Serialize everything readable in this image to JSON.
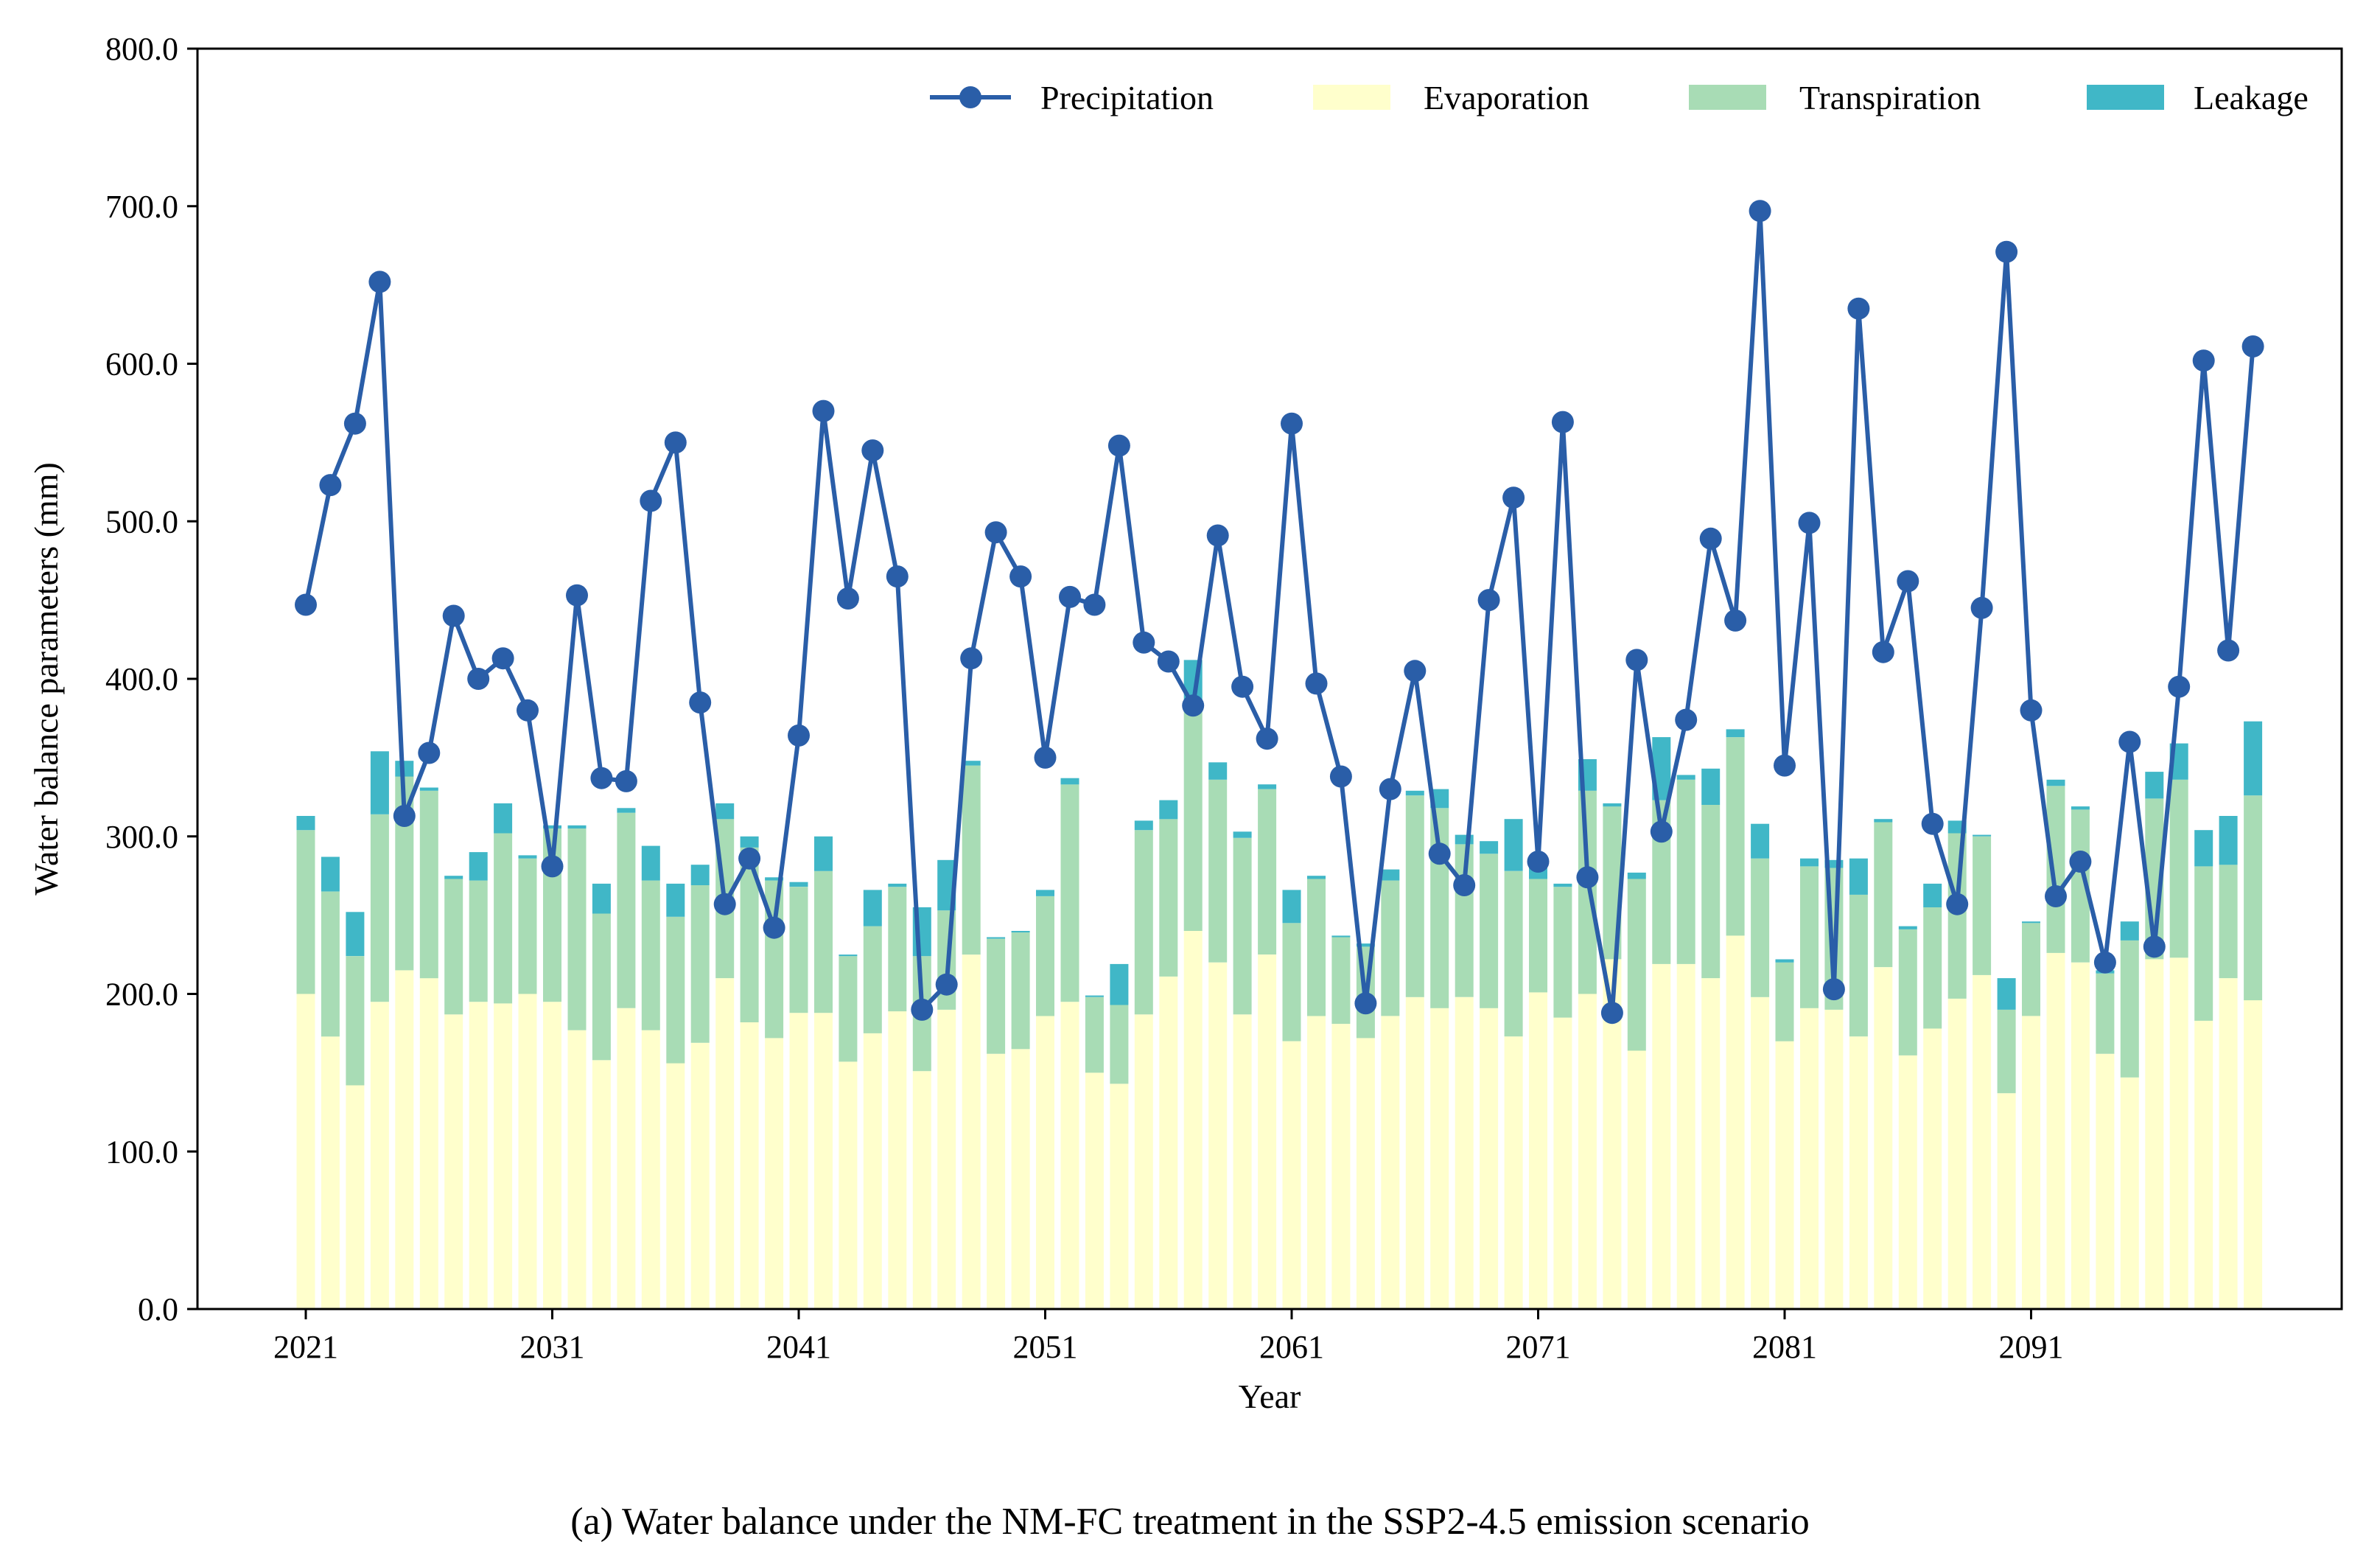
{
  "chart_data": {
    "type": "bar",
    "stacked": true,
    "title": "",
    "caption": "(a) Water balance under the NM-FC treatment in the SSP2-4.5 emission scenario",
    "xlabel": "Year",
    "ylabel": "Water balance parameters (mm)",
    "ylim": [
      0,
      800
    ],
    "yticks": [
      "0.0",
      "100.0",
      "200.0",
      "300.0",
      "400.0",
      "500.0",
      "600.0",
      "700.0",
      "800.0"
    ],
    "xticks": [
      "2021",
      "2031",
      "2041",
      "2051",
      "2061",
      "2071",
      "2081",
      "2091"
    ],
    "legend_position": "top-right",
    "years": [
      2021,
      2022,
      2023,
      2024,
      2025,
      2026,
      2027,
      2028,
      2029,
      2030,
      2031,
      2032,
      2033,
      2034,
      2035,
      2036,
      2037,
      2038,
      2039,
      2040,
      2041,
      2042,
      2043,
      2044,
      2045,
      2046,
      2047,
      2048,
      2049,
      2050,
      2051,
      2052,
      2053,
      2054,
      2055,
      2056,
      2057,
      2058,
      2059,
      2060,
      2061,
      2062,
      2063,
      2064,
      2065,
      2066,
      2067,
      2068,
      2069,
      2070,
      2071,
      2072,
      2073,
      2074,
      2075,
      2076,
      2077,
      2078,
      2079,
      2080,
      2081,
      2082,
      2083,
      2084,
      2085,
      2086,
      2087,
      2088,
      2089,
      2090,
      2091,
      2092,
      2093,
      2094,
      2095,
      2096,
      2097,
      2098,
      2099,
      2100
    ],
    "series": [
      {
        "name": "Precipitation",
        "kind": "line",
        "color": "#2a5ea8",
        "values": [
          447,
          523,
          562,
          652,
          313,
          353,
          440,
          400,
          413,
          380,
          281,
          453,
          337,
          335,
          513,
          550,
          385,
          257,
          286,
          242,
          364,
          570,
          451,
          545,
          465,
          190,
          206,
          413,
          493,
          465,
          350,
          452,
          447,
          548,
          423,
          411,
          383,
          491,
          395,
          362,
          562,
          397,
          338,
          194,
          330,
          405,
          289,
          269,
          450,
          515,
          284,
          563,
          274,
          188,
          412,
          303,
          374,
          489,
          437,
          697,
          345,
          499,
          203,
          635,
          417,
          462,
          308,
          257,
          445,
          671,
          380,
          262,
          284,
          220,
          360,
          230,
          395,
          602,
          418,
          611
        ]
      },
      {
        "name": "Evaporation",
        "kind": "bar",
        "color": "#ffffcc",
        "values": [
          200,
          173,
          142,
          195,
          215,
          210,
          187,
          195,
          194,
          200,
          195,
          177,
          158,
          191,
          177,
          156,
          169,
          210,
          182,
          172,
          188,
          188,
          157,
          175,
          189,
          151,
          190,
          225,
          162,
          165,
          186,
          195,
          150,
          143,
          187,
          211,
          240,
          220,
          187,
          225,
          170,
          186,
          181,
          172,
          186,
          198,
          191,
          198,
          191,
          173,
          201,
          185,
          200,
          222,
          164,
          219,
          219,
          210,
          237,
          198,
          170,
          191,
          190,
          173,
          217,
          161,
          178,
          197,
          212,
          137,
          186,
          226,
          220,
          162,
          147,
          222,
          223,
          183,
          210,
          196
        ]
      },
      {
        "name": "Transpiration",
        "kind": "bar",
        "color": "#a8dcb5",
        "values": [
          104,
          92,
          82,
          119,
          123,
          119,
          86,
          77,
          108,
          86,
          110,
          128,
          93,
          124,
          95,
          93,
          100,
          101,
          111,
          100,
          80,
          90,
          67,
          68,
          79,
          73,
          63,
          120,
          73,
          74,
          76,
          138,
          48,
          50,
          117,
          100,
          145,
          116,
          112,
          105,
          75,
          87,
          55,
          58,
          86,
          128,
          127,
          97,
          98,
          105,
          72,
          83,
          129,
          97,
          109,
          104,
          117,
          110,
          126,
          88,
          50,
          90,
          90,
          90,
          92,
          80,
          77,
          105,
          88,
          53,
          59,
          106,
          97,
          51,
          87,
          102,
          113,
          98,
          72,
          130
        ]
      },
      {
        "name": "Leakage",
        "kind": "bar",
        "color": "#40b7c7",
        "values": [
          9,
          22,
          28,
          40,
          10,
          2,
          2,
          18,
          19,
          2,
          2,
          2,
          19,
          3,
          22,
          21,
          13,
          10,
          7,
          2,
          3,
          22,
          1,
          23,
          2,
          31,
          32,
          3,
          1,
          1,
          4,
          4,
          1,
          26,
          6,
          12,
          27,
          11,
          4,
          3,
          21,
          2,
          1,
          2,
          7,
          3,
          12,
          6,
          8,
          33,
          12,
          2,
          20,
          2,
          4,
          40,
          3,
          23,
          5,
          22,
          2,
          5,
          5,
          23,
          2,
          2,
          15,
          8,
          1,
          20,
          1,
          4,
          2,
          2,
          12,
          17,
          23,
          23,
          31,
          47
        ]
      }
    ]
  }
}
